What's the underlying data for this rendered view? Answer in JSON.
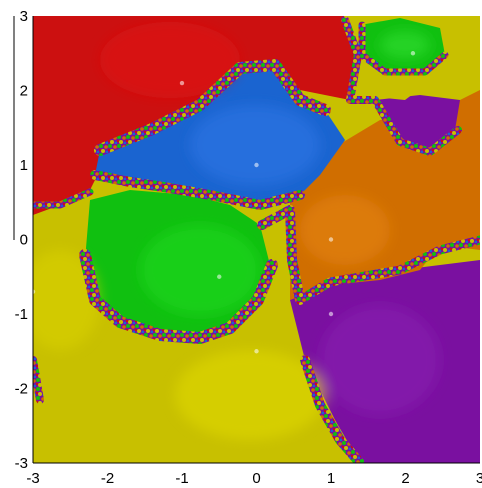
{
  "chart_data": {
    "type": "heatmap",
    "title": "",
    "xlabel": "",
    "ylabel": "",
    "xlim": [
      -3,
      3
    ],
    "ylim": [
      -3,
      3
    ],
    "x_ticks": [
      {
        "value": -3,
        "label": "-3"
      },
      {
        "value": -2,
        "label": "-2"
      },
      {
        "value": -1,
        "label": "-1"
      },
      {
        "value": 0,
        "label": "0"
      },
      {
        "value": 1,
        "label": "1"
      },
      {
        "value": 2,
        "label": "2"
      },
      {
        "value": 3,
        "label": "3"
      }
    ],
    "y_ticks": [
      {
        "value": 3,
        "label": "3"
      },
      {
        "value": 2,
        "label": "2"
      },
      {
        "value": 1,
        "label": "1"
      },
      {
        "value": 0,
        "label": "0"
      },
      {
        "value": -1,
        "label": "-1"
      },
      {
        "value": -2,
        "label": "-2"
      },
      {
        "value": -3,
        "label": "-3"
      }
    ],
    "grid": false,
    "legend": "none",
    "basins": [
      {
        "color": "#cc1010",
        "root": [
          -1.0,
          2.1
        ]
      },
      {
        "color": "#1a64d0",
        "root": [
          0.0,
          1.0
        ]
      },
      {
        "color": "#10c010",
        "root": [
          -0.5,
          -0.5
        ]
      },
      {
        "color": "#d06e00",
        "root": [
          1.0,
          0.0
        ]
      },
      {
        "color": "#c8c000",
        "root": [
          0.0,
          -1.5
        ]
      },
      {
        "color": "#7a10a0",
        "root": [
          1.0,
          -1.0
        ]
      },
      {
        "color": "#10c010",
        "root": [
          2.1,
          2.5
        ]
      },
      {
        "color": "#c8c000",
        "root": [
          -3.0,
          -0.7
        ]
      }
    ]
  }
}
